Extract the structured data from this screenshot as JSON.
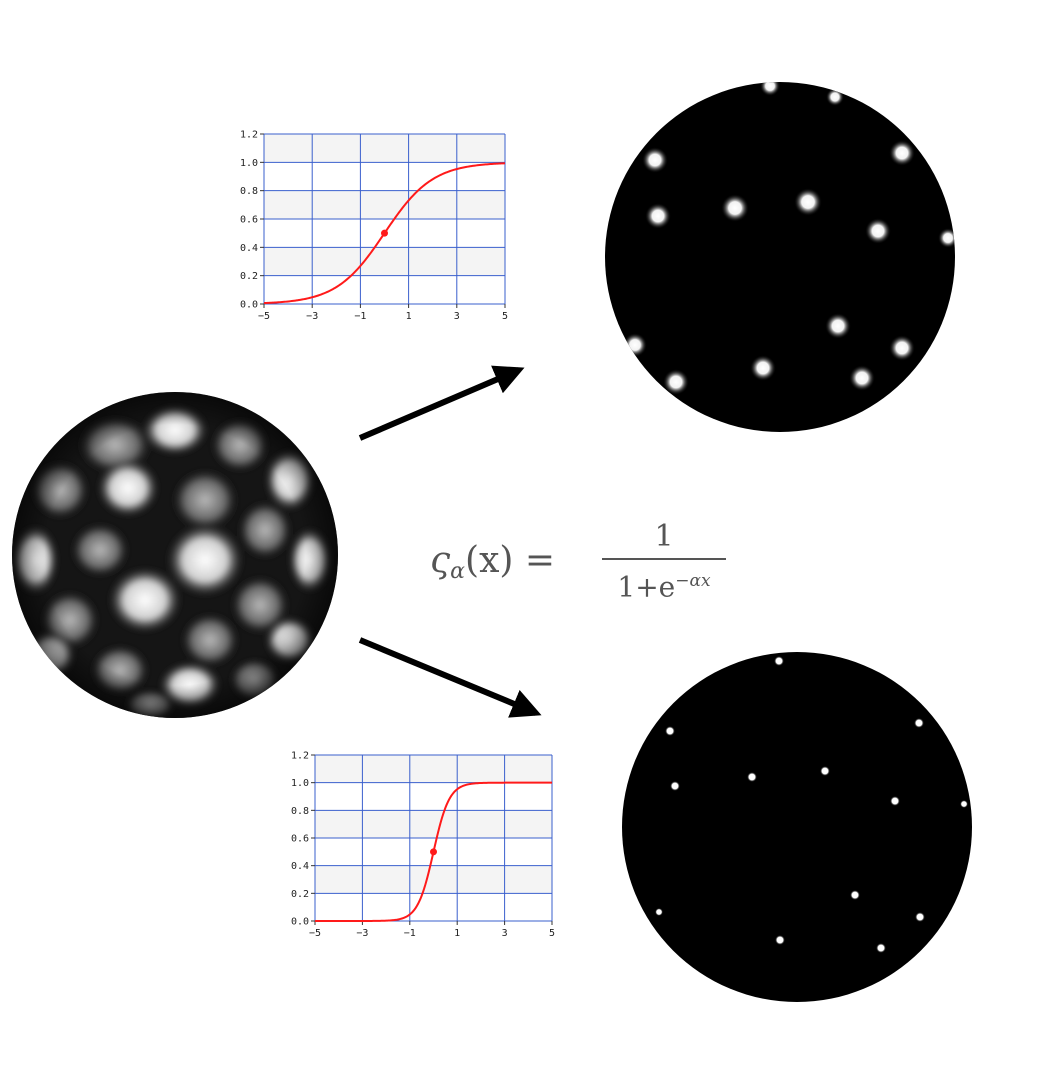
{
  "formula": {
    "lhs_symbol": "ς",
    "lhs_subscript": "α",
    "lhs_rest": "(x) =",
    "numerator": "1",
    "denominator_base": "1+e",
    "denominator_exponent": "−αx"
  },
  "colors": {
    "curve": "#ff1a1a",
    "grid": "#3a5fcd",
    "band": "#f4f4f4",
    "sphere_dark": "#000000",
    "sphere_light": "#ffffff"
  },
  "chart_data": [
    {
      "type": "line",
      "title": "",
      "xlabel": "",
      "ylabel": "",
      "x_ticks": [
        "−5",
        "−3",
        "−1",
        "1",
        "3",
        "5"
      ],
      "y_ticks": [
        "0.0",
        "0.2",
        "0.4",
        "0.6",
        "0.8",
        "1.0",
        "1.2"
      ],
      "xlim": [
        -5,
        5
      ],
      "ylim": [
        0,
        1.2
      ],
      "grid": true,
      "series": [
        {
          "function": "1/(1+e^(-x))",
          "alpha": 1
        }
      ],
      "marker": {
        "x": 0,
        "y": 0.5
      }
    },
    {
      "type": "line",
      "title": "",
      "xlabel": "",
      "ylabel": "",
      "x_ticks": [
        "−5",
        "−3",
        "−1",
        "1",
        "3",
        "5"
      ],
      "y_ticks": [
        "0.0",
        "0.2",
        "0.4",
        "0.6",
        "0.8",
        "1.0",
        "1.2"
      ],
      "xlim": [
        -5,
        5
      ],
      "ylim": [
        0,
        1.2
      ],
      "grid": true,
      "series": [
        {
          "function": "1/(1+e^(-3x))",
          "alpha": 3
        }
      ],
      "marker": {
        "x": 0,
        "y": 0.5
      }
    }
  ],
  "spheres": [
    {
      "name": "input-voronoi-sphere",
      "shading": "voronoi-noise"
    },
    {
      "name": "output-sphere-low-alpha",
      "shading": "soft-spots"
    },
    {
      "name": "output-sphere-high-alpha",
      "shading": "sharp-dots"
    }
  ],
  "arrows": [
    {
      "name": "arrow-to-top-output",
      "direction": "up-right"
    },
    {
      "name": "arrow-to-bottom-output",
      "direction": "down-right"
    }
  ]
}
